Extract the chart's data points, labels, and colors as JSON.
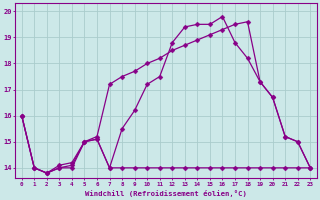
{
  "xlabel": "Windchill (Refroidissement éolien,°C)",
  "background_color": "#cce8e8",
  "line_color": "#880088",
  "grid_color": "#aacccc",
  "xlim": [
    -0.5,
    23.5
  ],
  "ylim": [
    13.6,
    20.3
  ],
  "ytick_values": [
    14,
    15,
    16,
    17,
    18,
    19,
    20
  ],
  "line1_x": [
    0,
    1,
    2,
    3,
    4,
    5,
    6,
    7,
    8,
    9,
    10,
    11,
    12,
    13,
    14,
    15,
    16,
    17,
    18,
    19,
    20,
    21,
    22,
    23
  ],
  "line1_y": [
    16.0,
    14.0,
    13.8,
    14.0,
    14.1,
    15.0,
    15.1,
    14.0,
    14.0,
    14.0,
    14.0,
    14.0,
    14.0,
    14.0,
    14.0,
    14.0,
    14.0,
    14.0,
    14.0,
    14.0,
    14.0,
    14.0,
    14.0,
    14.0
  ],
  "line2_x": [
    0,
    1,
    2,
    3,
    4,
    5,
    6,
    7,
    8,
    9,
    10,
    11,
    12,
    13,
    14,
    15,
    16,
    17,
    18,
    19,
    20,
    21,
    22,
    23
  ],
  "line2_y": [
    16.0,
    14.0,
    13.8,
    14.1,
    14.2,
    15.0,
    15.2,
    17.2,
    17.5,
    17.7,
    18.0,
    18.2,
    18.5,
    18.7,
    18.9,
    19.1,
    19.3,
    19.5,
    19.6,
    17.3,
    16.7,
    15.2,
    15.0,
    14.0
  ],
  "line3_x": [
    0,
    1,
    2,
    3,
    4,
    5,
    6,
    7,
    8,
    9,
    10,
    11,
    12,
    13,
    14,
    15,
    16,
    17,
    18,
    19,
    20,
    21,
    22,
    23
  ],
  "line3_y": [
    16.0,
    14.0,
    13.8,
    14.0,
    14.0,
    15.0,
    15.1,
    14.0,
    15.5,
    16.2,
    17.2,
    17.5,
    18.8,
    19.4,
    19.5,
    19.5,
    19.8,
    18.8,
    18.2,
    17.3,
    16.7,
    15.2,
    15.0,
    14.0
  ]
}
